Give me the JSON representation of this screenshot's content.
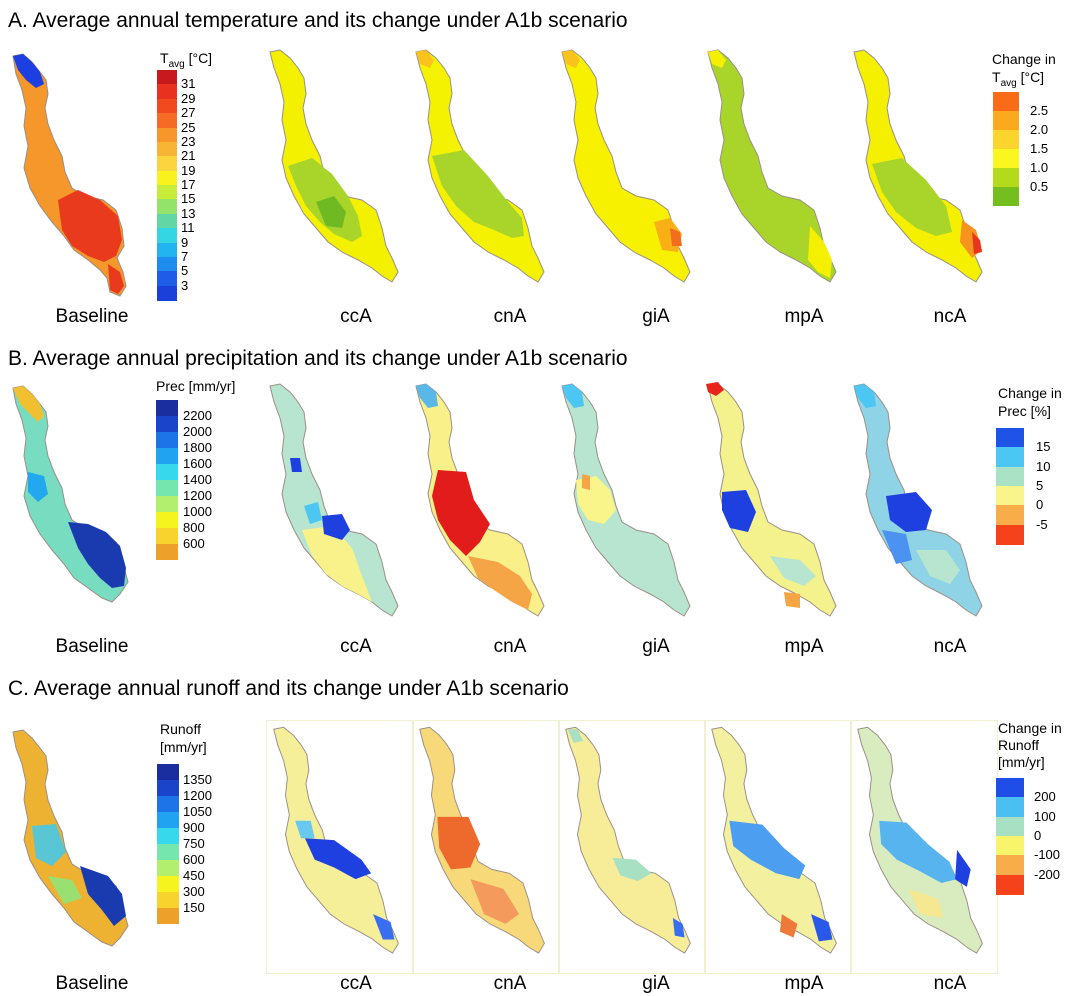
{
  "panels": {
    "a": {
      "title": "A. Average annual temperature and its change under A1b scenario",
      "baseline_legend": {
        "title_main": "T",
        "title_sub": "avg",
        "title_unit": " [°C]",
        "ticks": [
          "31",
          "29",
          "27",
          "25",
          "23",
          "21",
          "19",
          "17",
          "15",
          "13",
          "11",
          "9",
          "7",
          "5",
          "3"
        ],
        "colors": [
          "#c8191e",
          "#e8311e",
          "#f04a1e",
          "#f56a24",
          "#f7962b",
          "#f8b435",
          "#fbd43f",
          "#f9f21d",
          "#c7ec3a",
          "#93e26a",
          "#62d6a4",
          "#34d6e4",
          "#22b4f0",
          "#1d8cee",
          "#1f5de8",
          "#1b3fd9"
        ]
      },
      "change_legend": {
        "line1": "Change in",
        "title_main": "T",
        "title_sub": "avg",
        "title_unit": " [°C]",
        "ticks": [
          "2.5",
          "2.0",
          "1.5",
          "1.0",
          "0.5"
        ],
        "colors": [
          "#f96b17",
          "#fbaa1d",
          "#fbd52b",
          "#faf720",
          "#b4da1c",
          "#74be20"
        ]
      },
      "labels": [
        "Baseline",
        "ccA",
        "cnA",
        "giA",
        "mpA",
        "ncA"
      ]
    },
    "b": {
      "title": "B. Average annual precipitation and its change under A1b scenario",
      "baseline_legend": {
        "title": "Prec [mm/yr]",
        "ticks": [
          "2200",
          "2000",
          "1800",
          "1600",
          "1400",
          "1200",
          "1000",
          "800",
          "600"
        ],
        "colors": [
          "#1a2ea0",
          "#1a44c9",
          "#1d73e8",
          "#20a3f0",
          "#38d8ec",
          "#74e6ae",
          "#b2ef6e",
          "#f5f41f",
          "#f8d22d",
          "#eda12a"
        ]
      },
      "change_legend": {
        "line1": "Change in",
        "line2": "Prec [%]",
        "ticks": [
          "15",
          "10",
          "5",
          "0",
          "-5"
        ],
        "colors": [
          "#1e53e6",
          "#4cc6f2",
          "#a9e2c4",
          "#f9f58a",
          "#f9ad4a",
          "#f5421b"
        ]
      },
      "labels": [
        "Baseline",
        "ccA",
        "cnA",
        "giA",
        "mpA",
        "ncA"
      ]
    },
    "c": {
      "title": "C. Average annual runoff and its change under A1b scenario",
      "baseline_legend": {
        "line1": "Runoff",
        "line2": "[mm/yr]",
        "ticks": [
          "1350",
          "1200",
          "1050",
          "900",
          "750",
          "600",
          "450",
          "300",
          "150"
        ],
        "colors": [
          "#1a2ea0",
          "#1a44c9",
          "#1d73e8",
          "#20a3f0",
          "#38d8ec",
          "#74e6ae",
          "#b2ef6e",
          "#f5f41f",
          "#f8d22d",
          "#eda12a"
        ]
      },
      "change_legend": {
        "line1": "Change in",
        "line2": "Runoff",
        "line3": "[mm/yr]",
        "ticks": [
          "200",
          "100",
          "0",
          "-100",
          "-200"
        ],
        "colors": [
          "#1e4de8",
          "#4bbff2",
          "#a8e0c4",
          "#f8f46b",
          "#f9ad4a",
          "#f5421b"
        ]
      },
      "labels": [
        "Baseline",
        "ccA",
        "cnA",
        "giA",
        "mpA",
        "ncA"
      ]
    }
  },
  "map_fills": {
    "a": [
      "#f28a2c",
      "#f7f300",
      "#f5f20a",
      "#f8f000",
      "#a9d72a",
      "#e6ee12"
    ],
    "b": [
      "#7fd8c0",
      "#b5e6cf",
      "#f9f08a",
      "#b9e6cd",
      "#f3f28c",
      "#9ad9e2"
    ],
    "c": [
      "#f0c23a",
      "#f5ef9a",
      "#f7d97a",
      "#f7ec98",
      "#f3f0a0",
      "#d9ecc0"
    ]
  }
}
